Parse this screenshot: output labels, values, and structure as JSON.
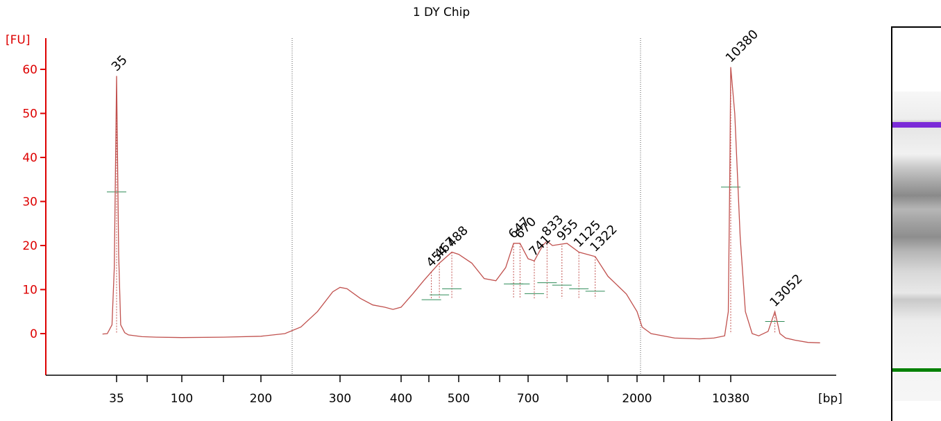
{
  "chart_data": {
    "type": "line",
    "title": "1 DY Chip",
    "ylabel": "[FU]",
    "xlabel": "[bp]",
    "ylim": [
      -9,
      67
    ],
    "yticks": [
      0,
      10,
      20,
      30,
      40,
      50,
      60
    ],
    "xticks": [
      "35",
      "100",
      "200",
      "300",
      "400",
      "500",
      "700",
      "2000",
      "10380"
    ],
    "series": [
      {
        "points": [
          [
            32.0,
            -0.1
          ],
          [
            33.0,
            0.0
          ],
          [
            34.0,
            2.0
          ],
          [
            34.5,
            15.0
          ],
          [
            35.0,
            58.5
          ],
          [
            35.5,
            18.0
          ],
          [
            36.0,
            2.0
          ],
          [
            37.0,
            0.2
          ],
          [
            38.0,
            -0.3
          ],
          [
            45.0,
            -0.7
          ],
          [
            60.0,
            -0.8
          ],
          [
            100.0,
            -0.9
          ],
          [
            150.0,
            -0.8
          ],
          [
            200.0,
            -0.6
          ],
          [
            230.0,
            0.0
          ],
          [
            250.0,
            1.5
          ],
          [
            270.0,
            5.0
          ],
          [
            290.0,
            9.5
          ],
          [
            300.0,
            10.5
          ],
          [
            310.0,
            10.2
          ],
          [
            330.0,
            8.0
          ],
          [
            350.0,
            6.5
          ],
          [
            370.0,
            6.0
          ],
          [
            385.0,
            5.5
          ],
          [
            400.0,
            6.0
          ],
          [
            420.0,
            9.0
          ],
          [
            440.0,
            12.0
          ],
          [
            454.0,
            14.0
          ],
          [
            467.0,
            16.0
          ],
          [
            488.0,
            18.5
          ],
          [
            500.0,
            18.0
          ],
          [
            530.0,
            16.0
          ],
          [
            560.0,
            12.5
          ],
          [
            590.0,
            12.0
          ],
          [
            620.0,
            15.0
          ],
          [
            647.0,
            20.5
          ],
          [
            670.0,
            20.5
          ],
          [
            700.0,
            17.0
          ],
          [
            741.0,
            16.5
          ],
          [
            800.0,
            20.0
          ],
          [
            833.0,
            21.0
          ],
          [
            875.0,
            20.0
          ],
          [
            1000.0,
            20.5
          ],
          [
            1125.0,
            18.5
          ],
          [
            1322.0,
            17.5
          ],
          [
            1500.0,
            13.0
          ],
          [
            1800.0,
            9.0
          ],
          [
            2000.0,
            5.0
          ],
          [
            2200.0,
            1.5
          ],
          [
            2500.0,
            0.0
          ],
          [
            3500.0,
            -1.0
          ],
          [
            5000.0,
            -1.2
          ],
          [
            7000.0,
            -1.0
          ],
          [
            9000.0,
            -0.5
          ],
          [
            9800.0,
            5.0
          ],
          [
            10200.0,
            40.0
          ],
          [
            10380.0,
            60.5
          ],
          [
            10600.0,
            50.0
          ],
          [
            10900.0,
            22.0
          ],
          [
            11200.0,
            5.0
          ],
          [
            11600.0,
            0.0
          ],
          [
            12000.0,
            -0.5
          ],
          [
            12600.0,
            0.5
          ],
          [
            13052.0,
            5.0
          ],
          [
            13400.0,
            0.0
          ],
          [
            13800.0,
            -1.0
          ],
          [
            14500.0,
            -1.5
          ],
          [
            15500.0,
            -2.0
          ],
          [
            16500.0,
            -2.1
          ]
        ]
      }
    ],
    "peak_labels": [
      {
        "label": "35",
        "x": 35,
        "y": 58.5,
        "color": "#008000"
      },
      {
        "label": "10380",
        "x": 10380,
        "y": 60.5,
        "color": "#9933ff"
      },
      {
        "label": "454",
        "x": 454,
        "y": 14.0,
        "color": "#000000"
      },
      {
        "label": "467",
        "x": 467,
        "y": 16.0,
        "color": "#000000"
      },
      {
        "label": "488",
        "x": 488,
        "y": 18.5,
        "color": "#000000"
      },
      {
        "label": "647",
        "x": 647,
        "y": 20.5,
        "color": "#000000"
      },
      {
        "label": "670",
        "x": 670,
        "y": 20.5,
        "color": "#000000"
      },
      {
        "label": "741",
        "x": 741,
        "y": 16.5,
        "color": "#000000"
      },
      {
        "label": "833",
        "x": 833,
        "y": 21.0,
        "color": "#000000"
      },
      {
        "label": "955",
        "x": 955,
        "y": 20.0,
        "color": "#000000"
      },
      {
        "label": "1125",
        "x": 1125,
        "y": 18.5,
        "color": "#000000"
      },
      {
        "label": "1322",
        "x": 1322,
        "y": 17.5,
        "color": "#000000"
      },
      {
        "label": "13052",
        "x": 13052,
        "y": 5.0,
        "color": "#000000"
      }
    ],
    "region_markers_bp": [
      240,
      2150
    ],
    "grid": false,
    "line_color": "#c0504d",
    "axis_color": "#dd0000",
    "baseline_color": "#2e8b57"
  },
  "gel": {
    "top_marker_color": "#7a2ad8",
    "bottom_marker_color": "#008000"
  }
}
